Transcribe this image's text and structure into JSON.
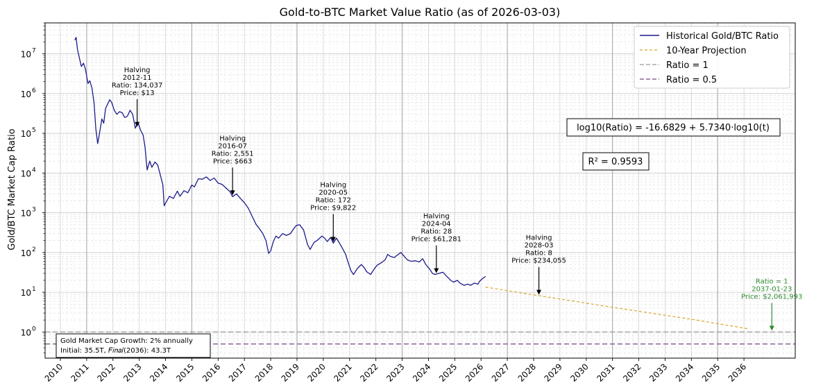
{
  "chart_data": {
    "type": "line",
    "title": "Gold-to-BTC Market Value Ratio (as of 2026-03-03)",
    "xlabel": "",
    "ylabel": "Gold/BTC Market Cap Ratio",
    "y_scale": "log10",
    "ylim": [
      0.22,
      60000000
    ],
    "xlim": [
      2009.42,
      2037.95
    ],
    "grid": true,
    "x_ticks": [
      "2010",
      "2011",
      "2012",
      "2013",
      "2014",
      "2015",
      "2016",
      "2017",
      "2018",
      "2019",
      "2020",
      "2021",
      "2022",
      "2023",
      "2024",
      "2025",
      "2026",
      "2027",
      "2028",
      "2029",
      "2030",
      "2031",
      "2032",
      "2033",
      "2034",
      "2035",
      "2036"
    ],
    "y_ticks": [
      {
        "value": 1,
        "base": "10",
        "exp": "0"
      },
      {
        "value": 10,
        "base": "10",
        "exp": "1"
      },
      {
        "value": 100,
        "base": "10",
        "exp": "2"
      },
      {
        "value": 1000,
        "base": "10",
        "exp": "3"
      },
      {
        "value": 10000,
        "base": "10",
        "exp": "4"
      },
      {
        "value": 100000,
        "base": "10",
        "exp": "5"
      },
      {
        "value": 1000000,
        "base": "10",
        "exp": "6"
      },
      {
        "value": 10000000,
        "base": "10",
        "exp": "7"
      }
    ],
    "series": [
      {
        "name": "Historical Gold/BTC Ratio",
        "color": "#1a1a8c",
        "style": "solid",
        "points": [
          [
            2010.55,
            22000000
          ],
          [
            2010.6,
            26000000
          ],
          [
            2010.65,
            13000000
          ],
          [
            2010.72,
            8000000
          ],
          [
            2010.8,
            4800000
          ],
          [
            2010.88,
            5800000
          ],
          [
            2010.95,
            4200000
          ],
          [
            2011.05,
            1800000
          ],
          [
            2011.12,
            2100000
          ],
          [
            2011.2,
            1400000
          ],
          [
            2011.28,
            600000
          ],
          [
            2011.35,
            130000
          ],
          [
            2011.42,
            55000
          ],
          [
            2011.5,
            110000
          ],
          [
            2011.58,
            230000
          ],
          [
            2011.65,
            180000
          ],
          [
            2011.72,
            420000
          ],
          [
            2011.8,
            550000
          ],
          [
            2011.88,
            700000
          ],
          [
            2011.95,
            600000
          ],
          [
            2012.05,
            380000
          ],
          [
            2012.15,
            300000
          ],
          [
            2012.25,
            350000
          ],
          [
            2012.35,
            330000
          ],
          [
            2012.45,
            250000
          ],
          [
            2012.55,
            270000
          ],
          [
            2012.65,
            380000
          ],
          [
            2012.75,
            300000
          ],
          [
            2012.85,
            134037
          ],
          [
            2012.95,
            190000
          ],
          [
            2013.05,
            120000
          ],
          [
            2013.15,
            90000
          ],
          [
            2013.22,
            45000
          ],
          [
            2013.3,
            12000
          ],
          [
            2013.4,
            20000
          ],
          [
            2013.48,
            14000
          ],
          [
            2013.6,
            19000
          ],
          [
            2013.7,
            16000
          ],
          [
            2013.8,
            9000
          ],
          [
            2013.9,
            5000
          ],
          [
            2013.95,
            1500
          ],
          [
            2014.05,
            2000
          ],
          [
            2014.15,
            2600
          ],
          [
            2014.3,
            2300
          ],
          [
            2014.45,
            3500
          ],
          [
            2014.55,
            2600
          ],
          [
            2014.7,
            3600
          ],
          [
            2014.85,
            3200
          ],
          [
            2015.0,
            5000
          ],
          [
            2015.1,
            4500
          ],
          [
            2015.25,
            7200
          ],
          [
            2015.4,
            7000
          ],
          [
            2015.55,
            8000
          ],
          [
            2015.7,
            6500
          ],
          [
            2015.85,
            7500
          ],
          [
            2016.0,
            5600
          ],
          [
            2016.15,
            5200
          ],
          [
            2016.3,
            4200
          ],
          [
            2016.45,
            3400
          ],
          [
            2016.55,
            2551
          ],
          [
            2016.7,
            3000
          ],
          [
            2016.85,
            2300
          ],
          [
            2017.0,
            1800
          ],
          [
            2017.15,
            1300
          ],
          [
            2017.3,
            800
          ],
          [
            2017.45,
            500
          ],
          [
            2017.55,
            420
          ],
          [
            2017.7,
            300
          ],
          [
            2017.82,
            200
          ],
          [
            2017.92,
            95
          ],
          [
            2018.0,
            110
          ],
          [
            2018.1,
            190
          ],
          [
            2018.2,
            260
          ],
          [
            2018.3,
            230
          ],
          [
            2018.45,
            300
          ],
          [
            2018.6,
            270
          ],
          [
            2018.75,
            300
          ],
          [
            2018.9,
            420
          ],
          [
            2018.98,
            480
          ],
          [
            2019.1,
            500
          ],
          [
            2019.25,
            370
          ],
          [
            2019.4,
            160
          ],
          [
            2019.5,
            120
          ],
          [
            2019.65,
            180
          ],
          [
            2019.8,
            210
          ],
          [
            2019.95,
            260
          ],
          [
            2020.05,
            230
          ],
          [
            2020.15,
            190
          ],
          [
            2020.28,
            240
          ],
          [
            2020.38,
            172
          ],
          [
            2020.5,
            230
          ],
          [
            2020.62,
            170
          ],
          [
            2020.75,
            120
          ],
          [
            2020.85,
            90
          ],
          [
            2020.95,
            55
          ],
          [
            2021.05,
            35
          ],
          [
            2021.15,
            28
          ],
          [
            2021.3,
            40
          ],
          [
            2021.45,
            50
          ],
          [
            2021.55,
            42
          ],
          [
            2021.65,
            33
          ],
          [
            2021.8,
            28
          ],
          [
            2021.95,
            40
          ],
          [
            2022.05,
            48
          ],
          [
            2022.2,
            55
          ],
          [
            2022.35,
            65
          ],
          [
            2022.45,
            90
          ],
          [
            2022.55,
            80
          ],
          [
            2022.7,
            75
          ],
          [
            2022.85,
            90
          ],
          [
            2022.95,
            100
          ],
          [
            2023.05,
            85
          ],
          [
            2023.2,
            65
          ],
          [
            2023.35,
            60
          ],
          [
            2023.5,
            62
          ],
          [
            2023.65,
            58
          ],
          [
            2023.78,
            70
          ],
          [
            2023.9,
            50
          ],
          [
            2024.05,
            38
          ],
          [
            2024.15,
            30
          ],
          [
            2024.25,
            28
          ],
          [
            2024.4,
            30
          ],
          [
            2024.55,
            32
          ],
          [
            2024.7,
            25
          ],
          [
            2024.85,
            20
          ],
          [
            2024.95,
            18
          ],
          [
            2025.1,
            20
          ],
          [
            2025.2,
            17
          ],
          [
            2025.35,
            15
          ],
          [
            2025.5,
            16
          ],
          [
            2025.6,
            15
          ],
          [
            2025.75,
            17
          ],
          [
            2025.88,
            16
          ],
          [
            2025.95,
            19
          ],
          [
            2026.05,
            22
          ],
          [
            2026.17,
            25
          ]
        ]
      },
      {
        "name": "10-Year Projection",
        "color": "#d4a72c",
        "style": "dashed",
        "points": [
          [
            2026.17,
            13.5
          ],
          [
            2028.3,
            8
          ],
          [
            2031.0,
            4.2
          ],
          [
            2034.0,
            2.1
          ],
          [
            2036.17,
            1.2
          ]
        ]
      },
      {
        "name": "Ratio = 1",
        "color": "#a8a8a8",
        "style": "dashed",
        "hline": 1
      },
      {
        "name": "Ratio = 0.5",
        "color": "#8a6a95",
        "style": "dashed",
        "hline": 0.5
      }
    ],
    "annotations": [
      {
        "lines": [
          "Halving",
          "2012-11",
          "Ratio: 134,037",
          "Price: $13"
        ],
        "x": 2012.92,
        "y": 134037,
        "color": "#000000"
      },
      {
        "lines": [
          "Halving",
          "2016-07",
          "Ratio: 2,551",
          "Price: $663"
        ],
        "x": 2016.55,
        "y": 2551,
        "color": "#000000"
      },
      {
        "lines": [
          "Halving",
          "2020-05",
          "Ratio: 172",
          "Price: $9,822"
        ],
        "x": 2020.38,
        "y": 172,
        "color": "#000000"
      },
      {
        "lines": [
          "Halving",
          "2024-04",
          "Ratio: 28",
          "Price: $61,281"
        ],
        "x": 2024.3,
        "y": 28,
        "color": "#000000"
      },
      {
        "lines": [
          "Halving",
          "2028-03",
          "Ratio: 8",
          "Price: $234,055"
        ],
        "x": 2028.2,
        "y": 8,
        "color": "#000000"
      },
      {
        "lines": [
          "Ratio = 1",
          "2037-01-23",
          "Price: $2,061,993"
        ],
        "x": 2037.06,
        "y": 1,
        "color": "#2e8b2e"
      }
    ],
    "legend": {
      "position": "top-right",
      "entries": [
        "Historical Gold/BTC Ratio",
        "10-Year Projection",
        "Ratio = 1",
        "Ratio = 0.5"
      ]
    },
    "fit_box": {
      "equation": "log10(Ratio) = -16.6829 + 5.7340·log10(t)",
      "r_squared": "R² = 0.9593"
    },
    "info_box": {
      "line1": "Gold Market Cap Growth: 2% annually",
      "line2": "Initial: 35.5T, 𝐹𝑖𝑛𝑎𝑙(2036): 43.3T"
    }
  }
}
